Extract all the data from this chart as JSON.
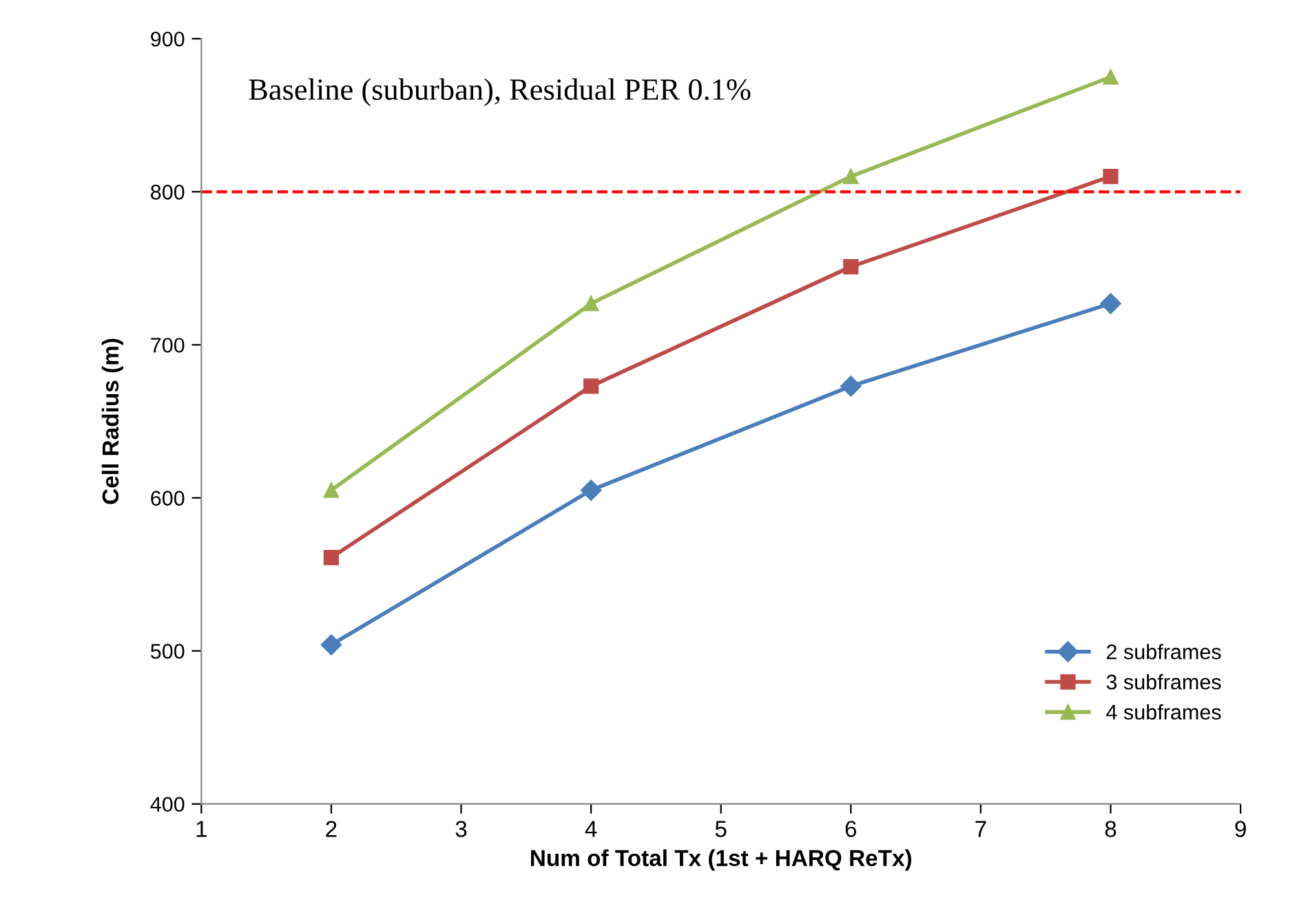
{
  "chart_data": {
    "type": "line",
    "xlabel": "Num of Total Tx (1st + HARQ ReTx)",
    "ylabel": "Cell Radius (m)",
    "annotations": [
      "Baseline (suburban), Residual PER 0.1%"
    ],
    "x": [
      2,
      4,
      6,
      8
    ],
    "series": [
      {
        "name": "2 subframes",
        "color": "#4a7ebb",
        "marker": "diamond",
        "values": [
          504,
          605,
          673,
          727
        ]
      },
      {
        "name": "3 subframes",
        "color": "#be4b48",
        "marker": "square",
        "values": [
          561,
          673,
          751,
          810
        ]
      },
      {
        "name": "4 subframes",
        "color": "#98b954",
        "marker": "triangle",
        "values": [
          605,
          727,
          810,
          875
        ]
      }
    ],
    "xlim": [
      1,
      9
    ],
    "xticks": [
      1,
      2,
      3,
      4,
      5,
      6,
      7,
      8,
      9
    ],
    "ylim": [
      400,
      900
    ],
    "yticks": [
      400,
      500,
      600,
      700,
      800,
      900
    ],
    "ref_lines": [
      {
        "axis": "y",
        "value": 800,
        "color": "#ff0000",
        "line_style": "dashed"
      }
    ],
    "grid": false,
    "legend": "bottom right",
    "line_style": "solid"
  }
}
